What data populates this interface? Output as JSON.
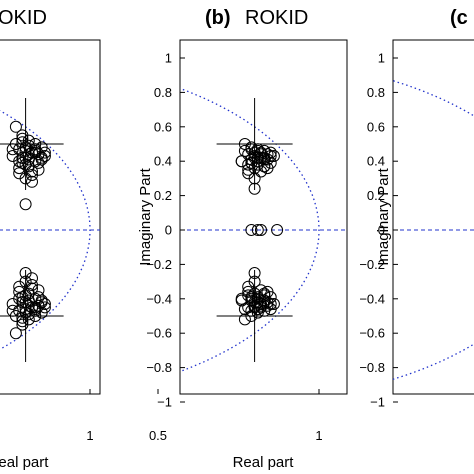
{
  "figure": {
    "panels": [
      {
        "letter": "",
        "name": "OKID",
        "xlabel": "Real part",
        "ylabel": ""
      },
      {
        "letter": "(b)",
        "name": "ROKID",
        "xlabel": "Real part",
        "ylabel": "Imaginary Part"
      },
      {
        "letter": "(c",
        "name": "",
        "xlabel": "",
        "ylabel": "Imaginary Part"
      }
    ]
  },
  "chart_data": [
    {
      "type": "scatter",
      "panel": "a",
      "title": "OKID",
      "xlabel": "Real part",
      "ylabel": "",
      "xlim": [
        0.05,
        1.1
      ],
      "ylim": [
        -1.1,
        1.1
      ],
      "xticks": [
        0.5,
        1
      ],
      "xtick_labels": [
        ".5",
        "1"
      ],
      "yticks": [],
      "unit_circle": true,
      "zero_line": true,
      "crosshairs": [
        [
          0.8,
          0.5
        ],
        [
          0.8,
          -0.5
        ]
      ],
      "series": [
        {
          "marker": "circle",
          "x": [
            0.77,
            0.79,
            0.81,
            0.83,
            0.85,
            0.78,
            0.8,
            0.82,
            0.84,
            0.76,
            0.79,
            0.81,
            0.83,
            0.8,
            0.78,
            0.82,
            0.84,
            0.86,
            0.77,
            0.8,
            0.83,
            0.79,
            0.81,
            0.85,
            0.78,
            0.8,
            0.82,
            0.79,
            0.81,
            0.83,
            0.85,
            0.78,
            0.84,
            0.8,
            0.76,
            0.82,
            0.8,
            0.81,
            0.79,
            0.83,
            0.84,
            0.86
          ],
          "y": [
            0.6,
            0.55,
            0.52,
            0.5,
            0.48,
            0.47,
            0.46,
            0.45,
            0.44,
            0.43,
            0.42,
            0.41,
            0.4,
            0.38,
            0.36,
            0.34,
            0.44,
            0.43,
            0.5,
            0.48,
            0.46,
            0.39,
            0.37,
            0.41,
            0.33,
            0.3,
            0.28,
            0.53,
            0.49,
            0.45,
            0.42,
            0.4,
            0.35,
            0.15,
            0.47,
            0.32,
            0.42,
            0.44,
            0.51,
            0.47,
            0.39,
            0.45
          ]
        },
        {
          "marker": "circle",
          "x": [
            0.77,
            0.79,
            0.81,
            0.83,
            0.85,
            0.78,
            0.8,
            0.82,
            0.84,
            0.76,
            0.79,
            0.81,
            0.83,
            0.8,
            0.78,
            0.82,
            0.84,
            0.86,
            0.77,
            0.8,
            0.83,
            0.79,
            0.81,
            0.85,
            0.78,
            0.8,
            0.82,
            0.79,
            0.81,
            0.83,
            0.85,
            0.78,
            0.84,
            0.8,
            0.76,
            0.82,
            0.8,
            0.81,
            0.79,
            0.83,
            0.84,
            0.86
          ],
          "y": [
            -0.6,
            -0.55,
            -0.52,
            -0.5,
            -0.48,
            -0.47,
            -0.46,
            -0.45,
            -0.44,
            -0.43,
            -0.42,
            -0.41,
            -0.4,
            -0.38,
            -0.36,
            -0.34,
            -0.44,
            -0.43,
            -0.5,
            -0.48,
            -0.46,
            -0.39,
            -0.37,
            -0.41,
            -0.33,
            -0.3,
            -0.28,
            -0.53,
            -0.49,
            -0.45,
            -0.42,
            -0.4,
            -0.35,
            -0.25,
            -0.47,
            -0.32,
            -0.42,
            -0.44,
            -0.51,
            -0.47,
            -0.39,
            -0.45
          ]
        }
      ]
    },
    {
      "type": "scatter",
      "panel": "b",
      "title": "(b) ROKID",
      "xlabel": "Real part",
      "ylabel": "Imaginary Part",
      "xlim": [
        0.2,
        1.1
      ],
      "ylim": [
        -1.1,
        1.1
      ],
      "xticks": [
        0.5,
        1
      ],
      "xtick_labels": [
        "0.5",
        "1"
      ],
      "yticks": [
        1,
        0.8,
        0.6,
        0.4,
        0.2,
        0,
        -0.2,
        -0.4,
        -0.6,
        -0.8,
        -1
      ],
      "ytick_labels": [
        "1",
        "0.8",
        "0.6",
        "0.4",
        "0.2",
        "0",
        "−0.2",
        "−0.4",
        "−0.6",
        "−0.8",
        "−1"
      ],
      "unit_circle": true,
      "zero_line": true,
      "crosshairs": [
        [
          0.8,
          0.5
        ],
        [
          0.8,
          -0.5
        ]
      ],
      "series": [
        {
          "marker": "circle",
          "x": [
            0.77,
            0.79,
            0.81,
            0.83,
            0.85,
            0.78,
            0.8,
            0.82,
            0.84,
            0.76,
            0.79,
            0.81,
            0.83,
            0.8,
            0.78,
            0.82,
            0.84,
            0.86,
            0.77,
            0.8,
            0.83,
            0.79,
            0.81,
            0.85,
            0.78,
            0.8,
            0.82,
            0.79,
            0.81,
            0.83,
            0.85,
            0.78,
            0.84,
            0.8,
            0.76,
            0.82,
            0.8,
            0.81,
            0.79,
            0.83
          ],
          "y": [
            0.5,
            0.48,
            0.47,
            0.46,
            0.45,
            0.44,
            0.43,
            0.42,
            0.41,
            0.4,
            0.39,
            0.38,
            0.37,
            0.36,
            0.35,
            0.34,
            0.44,
            0.43,
            0.46,
            0.45,
            0.42,
            0.41,
            0.4,
            0.39,
            0.33,
            0.3,
            0.45,
            0.47,
            0.42,
            0.41,
            0.43,
            0.38,
            0.36,
            0.24,
            0.4,
            0.44,
            0.42,
            0.46,
            0.39,
            0.37
          ]
        },
        {
          "marker": "circle",
          "x": [
            0.79,
            0.81,
            0.82,
            0.87
          ],
          "y": [
            0,
            0,
            0,
            0
          ]
        },
        {
          "marker": "circle",
          "x": [
            0.77,
            0.79,
            0.81,
            0.83,
            0.85,
            0.78,
            0.8,
            0.82,
            0.84,
            0.76,
            0.79,
            0.81,
            0.83,
            0.8,
            0.78,
            0.82,
            0.84,
            0.86,
            0.77,
            0.8,
            0.83,
            0.79,
            0.81,
            0.85,
            0.78,
            0.8,
            0.82,
            0.79,
            0.81,
            0.83,
            0.85,
            0.78,
            0.84,
            0.8,
            0.76,
            0.82,
            0.8,
            0.81,
            0.79,
            0.83
          ],
          "y": [
            -0.52,
            -0.5,
            -0.48,
            -0.47,
            -0.46,
            -0.45,
            -0.44,
            -0.43,
            -0.42,
            -0.41,
            -0.4,
            -0.39,
            -0.38,
            -0.37,
            -0.36,
            -0.35,
            -0.44,
            -0.43,
            -0.46,
            -0.45,
            -0.42,
            -0.41,
            -0.4,
            -0.39,
            -0.33,
            -0.3,
            -0.45,
            -0.47,
            -0.42,
            -0.41,
            -0.43,
            -0.38,
            -0.36,
            -0.25,
            -0.4,
            -0.44,
            -0.42,
            -0.46,
            -0.39,
            -0.37
          ]
        }
      ]
    },
    {
      "type": "scatter",
      "panel": "c",
      "title": "(c",
      "xlabel": "",
      "ylabel": "Imaginary Part",
      "xlim": [
        0.2,
        1.1
      ],
      "ylim": [
        -1.1,
        1.1
      ],
      "yticks": [
        1,
        0.8,
        0.6,
        0.4,
        0.2,
        0,
        -0.2,
        -0.4,
        -0.6,
        -0.8,
        -1
      ],
      "ytick_labels": [
        "1",
        "0.8",
        "0.6",
        "0.4",
        "0.2",
        "0",
        "−0.2",
        "−0.4",
        "−0.6",
        "−0.8",
        "−1"
      ],
      "unit_circle": true,
      "zero_line": true,
      "series": []
    }
  ]
}
